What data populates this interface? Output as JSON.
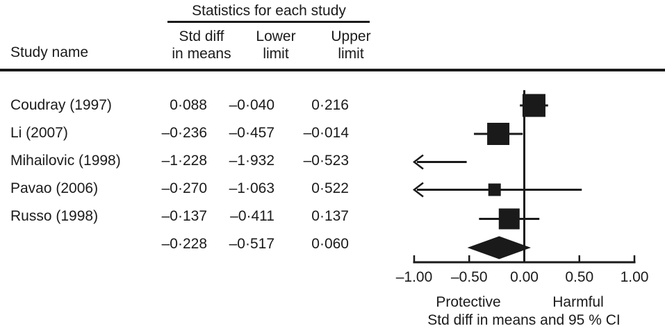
{
  "header": {
    "stats_group_title": "Statistics for each study",
    "col_study": "Study name",
    "col_est_line1": "Std diff",
    "col_est_line2": "in means",
    "col_lower_line1": "Lower",
    "col_lower_line2": "limit",
    "col_upper_line1": "Upper",
    "col_upper_line2": "limit"
  },
  "chart_data": {
    "type": "forest",
    "studies": [
      {
        "name": "Coudray (1997)",
        "est": 0.088,
        "lower": -0.04,
        "upper": 0.216,
        "est_label": "0·088",
        "lower_label": "–0·040",
        "upper_label": "0·216",
        "marker_size": 33
      },
      {
        "name": "Li (2007)",
        "est": -0.236,
        "lower": -0.457,
        "upper": -0.014,
        "est_label": "–0·236",
        "lower_label": "–0·457",
        "upper_label": "–0·014",
        "marker_size": 32
      },
      {
        "name": "Mihailovic (1998)",
        "est": -1.228,
        "lower": -1.932,
        "upper": -0.523,
        "est_label": "–1·228",
        "lower_label": "–1·932",
        "upper_label": "–0·523",
        "marker_size": 0
      },
      {
        "name": "Pavao (2006)",
        "est": -0.27,
        "lower": -1.063,
        "upper": 0.522,
        "est_label": "–0·270",
        "lower_label": "–1·063",
        "upper_label": "0·522",
        "marker_size": 18
      },
      {
        "name": "Russo (1998)",
        "est": -0.137,
        "lower": -0.411,
        "upper": 0.137,
        "est_label": "–0·137",
        "lower_label": "–0·411",
        "upper_label": "0·137",
        "marker_size": 30
      }
    ],
    "overall": {
      "est": -0.228,
      "lower": -0.517,
      "upper": 0.06,
      "est_label": "–0·228",
      "lower_label": "–0·517",
      "upper_label": "0·060"
    },
    "axis": {
      "min": -1,
      "max": 1,
      "ticks": [
        -1,
        -0.5,
        0,
        0.5,
        1
      ],
      "tick_labels": [
        "–1.00",
        "–0.50",
        "0.00",
        "0.50",
        "1.00"
      ]
    },
    "xlabel_left": "Protective",
    "xlabel_right": "Harmful",
    "caption": "Std diff in means and 95 % CI"
  },
  "colors": {
    "ink": "#1a1a1a",
    "background": "#ffffff"
  }
}
